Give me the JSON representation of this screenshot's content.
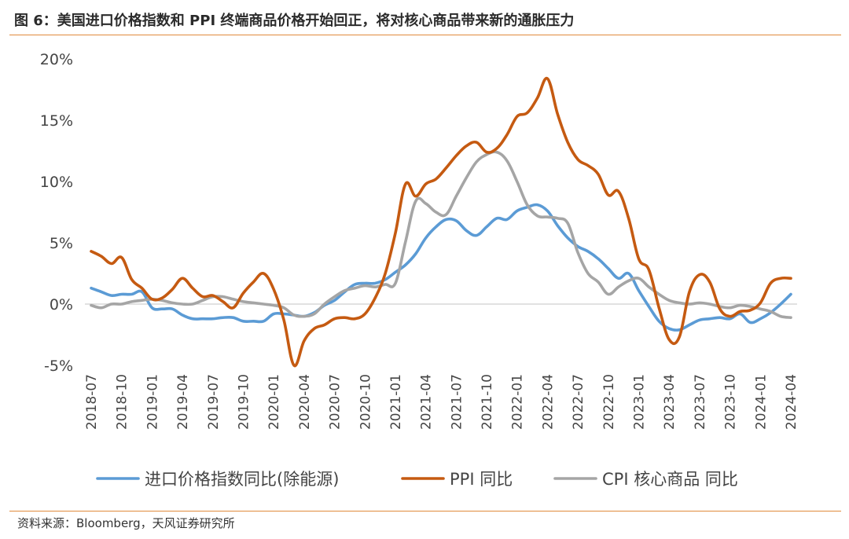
{
  "header": {
    "title": "图 6：美国进口价格指数和 PPI 终端商品价格开始回正，将对核心商品带来新的通胀压力"
  },
  "footer": {
    "source": "资料来源：Bloomberg，天风证券研究所"
  },
  "chart_data": {
    "type": "line",
    "title": "图 6：美国进口价格指数和 PPI 终端商品价格开始回正，将对核心商品带来新的通胀压力",
    "xlabel": "",
    "ylabel": "",
    "ylim": [
      -5,
      20
    ],
    "yticks": [
      -5,
      0,
      5,
      10,
      15,
      20
    ],
    "ytick_labels": [
      "-5%",
      "0%",
      "5%",
      "10%",
      "15%",
      "20%"
    ],
    "x_range": [
      "2018-07",
      "2024-04"
    ],
    "xtick_labels": [
      "2018-07",
      "2018-10",
      "2019-01",
      "2019-04",
      "2019-07",
      "2019-10",
      "2020-01",
      "2020-04",
      "2020-07",
      "2020-10",
      "2021-01",
      "2021-04",
      "2021-07",
      "2021-10",
      "2022-01",
      "2022-04",
      "2022-07",
      "2022-10",
      "2023-01",
      "2023-04",
      "2023-07",
      "2023-10",
      "2024-01",
      "2024-04"
    ],
    "grid": false,
    "legend_position": "bottom",
    "series": [
      {
        "name": "进口价格指数同比(除能源)",
        "color": "#5b9bd5",
        "values": [
          1.3,
          1.0,
          0.7,
          0.8,
          0.8,
          1.0,
          -0.3,
          -0.4,
          -0.4,
          -0.9,
          -1.2,
          -1.2,
          -1.2,
          -1.1,
          -1.1,
          -1.4,
          -1.4,
          -1.4,
          -0.8,
          -0.8,
          -0.9,
          -1.0,
          -0.7,
          -0.1,
          0.3,
          1.0,
          1.6,
          1.7,
          1.7,
          2.0,
          2.6,
          3.2,
          4.1,
          5.4,
          6.3,
          6.9,
          6.8,
          6.0,
          5.6,
          6.3,
          7.0,
          6.9,
          7.6,
          7.9,
          8.1,
          7.6,
          6.4,
          5.4,
          4.7,
          4.3,
          3.7,
          2.9,
          2.1,
          2.5,
          1.1,
          -0.2,
          -1.4,
          -2.0,
          -2.1,
          -1.7,
          -1.3,
          -1.2,
          -1.1,
          -1.2,
          -0.8,
          -1.5,
          -1.2,
          -0.7,
          0.0,
          0.8
        ]
      },
      {
        "name": "PPI 同比",
        "color": "#c55a11",
        "values": [
          4.3,
          3.9,
          3.3,
          3.8,
          2.0,
          1.3,
          0.4,
          0.5,
          1.2,
          2.1,
          1.3,
          0.6,
          0.7,
          0.2,
          -0.3,
          0.9,
          1.8,
          2.5,
          1.2,
          -1.3,
          -5.0,
          -3.0,
          -2.0,
          -1.7,
          -1.2,
          -1.1,
          -1.2,
          -0.8,
          0.5,
          2.5,
          5.8,
          9.8,
          8.8,
          9.8,
          10.2,
          11.1,
          12.1,
          12.9,
          13.2,
          12.4,
          12.7,
          13.8,
          15.3,
          15.6,
          16.8,
          18.4,
          15.5,
          13.2,
          11.8,
          11.3,
          10.6,
          8.9,
          9.2,
          7.0,
          3.7,
          2.8,
          -0.3,
          -2.9,
          -2.7,
          1.0,
          2.4,
          1.8,
          -0.4,
          -1.0,
          -0.6,
          -0.5,
          0.1,
          1.7,
          2.1,
          2.1
        ]
      },
      {
        "name": "CPI 核心商品 同比",
        "color": "#a5a5a5",
        "values": [
          -0.1,
          -0.3,
          0.0,
          0.0,
          0.2,
          0.3,
          0.4,
          0.3,
          0.1,
          0.0,
          0.0,
          0.3,
          0.6,
          0.6,
          0.4,
          0.2,
          0.1,
          0.0,
          -0.1,
          -0.3,
          -0.9,
          -1.0,
          -0.8,
          0.0,
          0.6,
          1.1,
          1.3,
          1.5,
          1.4,
          1.6,
          1.7,
          5.1,
          8.4,
          8.2,
          7.5,
          7.3,
          8.8,
          10.3,
          11.6,
          12.2,
          12.4,
          11.7,
          10.0,
          8.1,
          7.2,
          7.1,
          7.0,
          6.6,
          4.2,
          2.5,
          1.8,
          0.8,
          1.4,
          1.9,
          2.1,
          1.4,
          0.8,
          0.3,
          0.1,
          0.0,
          0.1,
          0.0,
          -0.2,
          -0.3,
          -0.1,
          -0.2,
          -0.4,
          -0.6,
          -1.0,
          -1.1
        ]
      }
    ]
  }
}
